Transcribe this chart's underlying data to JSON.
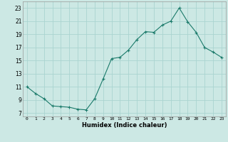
{
  "title": "",
  "xlabel": "Humidex (Indice chaleur)",
  "ylabel": "",
  "background_color": "#cce8e4",
  "grid_color": "#aad4d0",
  "line_color": "#1a7a6a",
  "marker_color": "#1a7a6a",
  "xlim": [
    -0.5,
    23.5
  ],
  "ylim": [
    6.5,
    24.0
  ],
  "yticks": [
    7,
    9,
    11,
    13,
    15,
    17,
    19,
    21,
    23
  ],
  "xticks": [
    0,
    1,
    2,
    3,
    4,
    5,
    6,
    7,
    8,
    9,
    10,
    11,
    12,
    13,
    14,
    15,
    16,
    17,
    18,
    19,
    20,
    21,
    22,
    23
  ],
  "x": [
    0,
    1,
    2,
    3,
    4,
    5,
    6,
    7,
    8,
    9,
    10,
    11,
    12,
    13,
    14,
    15,
    16,
    17,
    18,
    19,
    20,
    21,
    22,
    23
  ],
  "y": [
    11.0,
    10.0,
    9.2,
    8.1,
    8.0,
    7.9,
    7.6,
    7.5,
    9.2,
    12.2,
    15.3,
    15.5,
    16.6,
    18.2,
    19.4,
    19.3,
    20.4,
    21.0,
    23.0,
    20.9,
    19.3,
    17.0,
    16.3,
    15.5
  ]
}
